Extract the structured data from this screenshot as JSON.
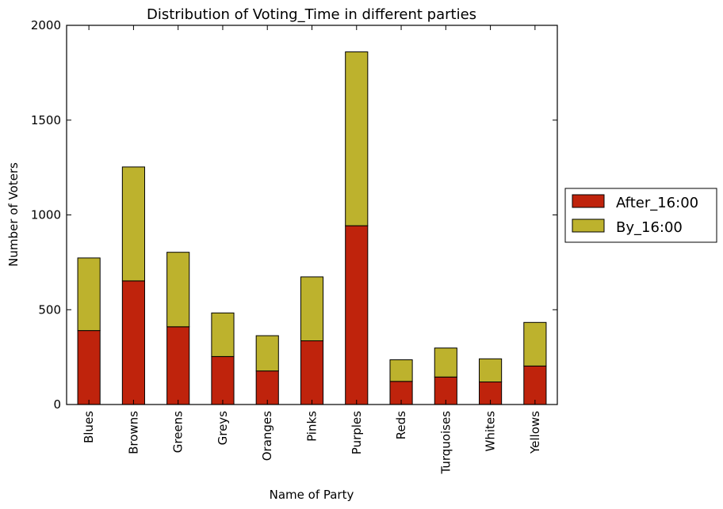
{
  "chart_data": {
    "type": "bar",
    "stacked": true,
    "title": "Distribution of Voting_Time in different parties",
    "xlabel": "Name of Party",
    "ylabel": "Number of Voters",
    "ylim": [
      0,
      2000
    ],
    "yticks": [
      0,
      500,
      1000,
      1500,
      2000
    ],
    "grid": false,
    "legend_position": "right",
    "categories": [
      "Blues",
      "Browns",
      "Greens",
      "Greys",
      "Oranges",
      "Pinks",
      "Purples",
      "Reds",
      "Turquoises",
      "Whites",
      "Yellows"
    ],
    "series": [
      {
        "name": "After_16:00",
        "color": "#bf230c",
        "values": [
          390,
          652,
          410,
          253,
          177,
          336,
          943,
          122,
          145,
          119,
          203
        ]
      },
      {
        "name": "By_16:00",
        "color": "#bdb22d",
        "values": [
          383,
          601,
          393,
          230,
          186,
          337,
          917,
          114,
          153,
          122,
          230
        ]
      }
    ]
  }
}
